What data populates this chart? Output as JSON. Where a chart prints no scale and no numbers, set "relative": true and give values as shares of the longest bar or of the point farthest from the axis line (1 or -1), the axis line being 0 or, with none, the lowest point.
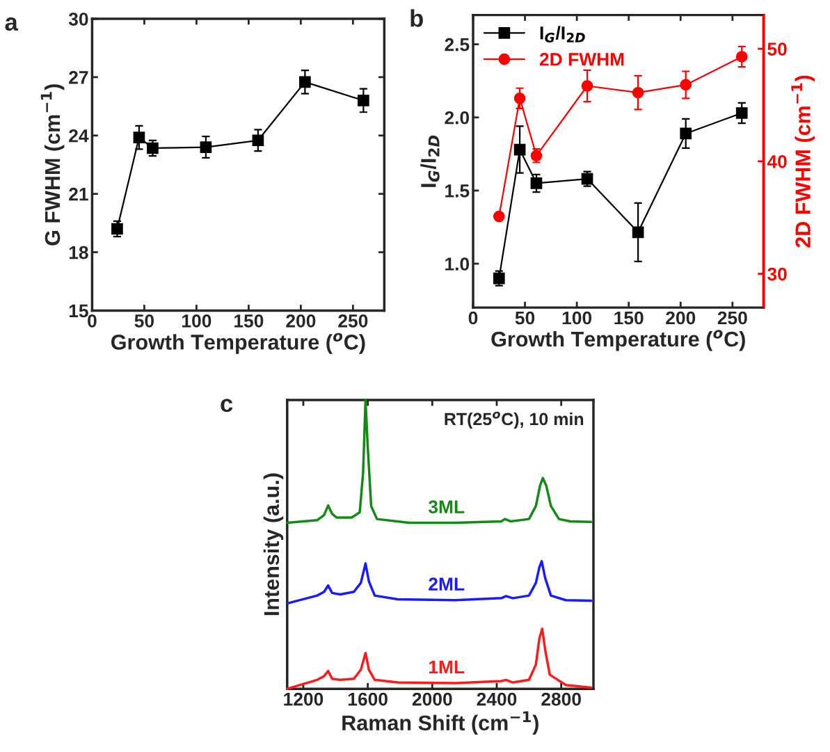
{
  "chart_data": [
    {
      "type": "line",
      "annotations": [
        "a"
      ],
      "xlabel": "Growth Temperature ($^{o}$C)",
      "ylabel": "G FWHM (cm$^{−1}$)",
      "xlim": [
        0,
        280
      ],
      "xticks": [
        0,
        50,
        100,
        150,
        200,
        250
      ],
      "ylim": [
        15,
        30
      ],
      "yticks": [
        15,
        18,
        21,
        24,
        27,
        30
      ],
      "marker": "square",
      "series": [
        {
          "color": "#000000",
          "x": [
            24,
            45,
            58,
            109,
            159,
            204,
            260
          ],
          "values": [
            19.2,
            23.9,
            23.35,
            23.4,
            23.75,
            26.75,
            25.8
          ],
          "errors": [
            0.4,
            0.6,
            0.4,
            0.55,
            0.55,
            0.6,
            0.6
          ]
        }
      ]
    },
    {
      "type": "line",
      "annotations": [
        "b"
      ],
      "xlabel": "Growth Temperature ($^{o}$C)",
      "ylabel": "I$_{G}$/I$_{2D}$",
      "y2label": "2D FWHM (cm$^{−1}$)",
      "xlim": [
        0,
        280
      ],
      "xticks": [
        0,
        50,
        100,
        150,
        200,
        250
      ],
      "ylim": [
        0.7,
        2.7
      ],
      "yticks": [
        {
          "value": 1,
          "label": "1.0"
        },
        1.5,
        {
          "value": 2,
          "label": "2.0"
        },
        2.5
      ],
      "y2lim": [
        27,
        53
      ],
      "y2ticks": [
        30,
        40,
        50
      ],
      "legend": "top left",
      "series": [
        {
          "name": "I$_{G}$/I$_{2D}$",
          "color": "#000000",
          "marker": "square",
          "x": [
            25,
            45,
            61,
            110,
            159,
            205,
            259
          ],
          "values": [
            0.9,
            1.78,
            1.55,
            1.58,
            1.215,
            1.89,
            2.03
          ],
          "errors": [
            0.05,
            0.16,
            0.06,
            0.05,
            0.2,
            0.1,
            0.07
          ]
        },
        {
          "name": "2D FWHM",
          "color": "#ff0000",
          "marker": "circle",
          "axis": "y2",
          "x": [
            25,
            45,
            61,
            110,
            159,
            205,
            259
          ],
          "values": [
            35.1,
            45.6,
            40.5,
            46.7,
            46.1,
            46.8,
            49.3
          ],
          "errors": [
            null,
            0.9,
            0.6,
            1.4,
            1.5,
            1.2,
            0.9
          ]
        }
      ]
    },
    {
      "type": "line",
      "relative": true,
      "annotations": [
        "c",
        "RT(25$^{o}$C), 10 min"
      ],
      "xlabel": "Raman Shift (cm$^{−1}$)",
      "ylabel": "Intensity (a.u.)",
      "xlim": [
        1100,
        3000
      ],
      "xticks": [
        1200,
        1600,
        2000,
        2400,
        2800
      ],
      "series": [
        {
          "name": "3ML",
          "color": "#138a13",
          "x": [
            1100,
            1286,
            1329,
            1354,
            1379,
            1407,
            1500,
            1550,
            1571,
            1586,
            1600,
            1621,
            1657,
            1857,
            2143,
            2429,
            2450,
            2486,
            2600,
            2643,
            2669,
            2686,
            2707,
            2736,
            2786,
            2857,
            2986
          ],
          "values": [
            0.575,
            0.584,
            0.602,
            0.635,
            0.606,
            0.593,
            0.593,
            0.611,
            0.748,
            1.0,
            0.836,
            0.633,
            0.588,
            0.575,
            0.575,
            0.58,
            0.588,
            0.58,
            0.588,
            0.633,
            0.704,
            0.73,
            0.704,
            0.633,
            0.588,
            0.58,
            0.578
          ]
        },
        {
          "name": "2ML",
          "color": "#1a1aff",
          "x": [
            1100,
            1286,
            1329,
            1354,
            1379,
            1429,
            1514,
            1557,
            1586,
            1607,
            1643,
            1786,
            2143,
            2429,
            2457,
            2500,
            2600,
            2643,
            2664,
            2679,
            2700,
            2736,
            2829,
            2986
          ],
          "values": [
            0.296,
            0.323,
            0.336,
            0.358,
            0.332,
            0.327,
            0.336,
            0.367,
            0.434,
            0.372,
            0.323,
            0.31,
            0.307,
            0.314,
            0.321,
            0.314,
            0.323,
            0.367,
            0.42,
            0.442,
            0.385,
            0.323,
            0.307,
            0.305
          ]
        },
        {
          "name": "1ML",
          "color": "#ff1a1a",
          "x": [
            1100,
            1286,
            1329,
            1354,
            1379,
            1429,
            1514,
            1557,
            1586,
            1607,
            1643,
            1786,
            2143,
            2429,
            2457,
            2500,
            2600,
            2643,
            2664,
            2682,
            2700,
            2729,
            2829,
            2986
          ],
          "values": [
            0.0,
            0.031,
            0.044,
            0.062,
            0.035,
            0.031,
            0.035,
            0.066,
            0.124,
            0.066,
            0.031,
            0.022,
            0.02,
            0.027,
            0.031,
            0.022,
            0.031,
            0.084,
            0.173,
            0.208,
            0.137,
            0.049,
            0.013,
            0.004
          ]
        }
      ]
    }
  ]
}
